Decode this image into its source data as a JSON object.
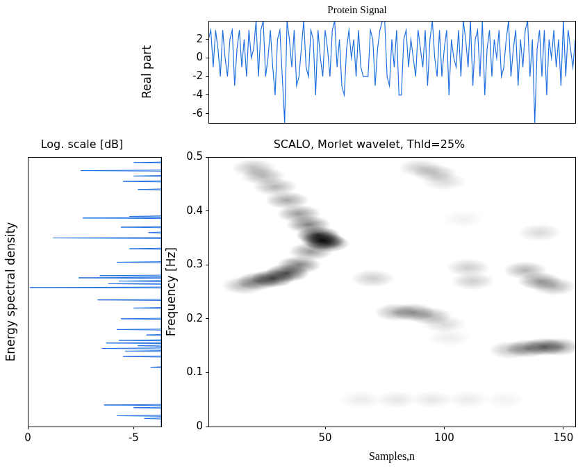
{
  "chart_data": [
    {
      "type": "line",
      "title": "Protein Signal",
      "ylabel": "Real part",
      "color": "#1f6fe0",
      "grid": false,
      "tick_labels": "y",
      "xlim": [
        1,
        155
      ],
      "ylim": [
        -7,
        4
      ],
      "yticks": [
        -6,
        -4,
        -2,
        0,
        2
      ],
      "x": [
        1,
        2,
        3,
        4,
        5,
        6,
        7,
        8,
        9,
        10,
        11,
        12,
        13,
        14,
        15,
        16,
        17,
        18,
        19,
        20,
        21,
        22,
        23,
        24,
        25,
        26,
        27,
        28,
        29,
        30,
        31,
        32,
        33,
        34,
        35,
        36,
        37,
        38,
        39,
        40,
        41,
        42,
        43,
        44,
        45,
        46,
        47,
        48,
        49,
        50,
        51,
        52,
        53,
        54,
        55,
        56,
        57,
        58,
        59,
        60,
        61,
        62,
        63,
        64,
        65,
        66,
        67,
        68,
        69,
        70,
        71,
        72,
        73,
        74,
        75,
        76,
        77,
        78,
        79,
        80,
        81,
        82,
        83,
        84,
        85,
        86,
        87,
        88,
        89,
        90,
        91,
        92,
        93,
        94,
        95,
        96,
        97,
        98,
        99,
        100,
        101,
        102,
        103,
        104,
        105,
        106,
        107,
        108,
        109,
        110,
        111,
        112,
        113,
        114,
        115,
        116,
        117,
        118,
        119,
        120,
        121,
        122,
        123,
        124,
        125,
        126,
        127,
        128,
        129,
        130,
        131,
        132,
        133,
        134,
        135,
        136,
        137,
        138,
        139,
        140,
        141,
        142,
        143,
        144,
        145,
        146,
        147,
        148,
        149,
        150,
        151,
        152,
        153,
        154,
        155
      ],
      "values": [
        2,
        3,
        -1,
        3,
        1,
        -2,
        3,
        0,
        -2,
        2,
        3,
        -3,
        1,
        3,
        -1,
        2,
        -2,
        3,
        0,
        1,
        4,
        -2,
        3,
        4,
        -2,
        0,
        3,
        -1,
        -4,
        2,
        3,
        -2,
        -7,
        4,
        2,
        -1,
        3,
        -3,
        -2,
        1,
        4,
        -1,
        -2,
        3,
        2,
        -4,
        3,
        0,
        -2,
        3,
        1,
        -2,
        3,
        4,
        -1,
        2,
        -3,
        -4,
        1,
        3,
        0,
        2,
        -2,
        3,
        -1,
        -2,
        -2,
        -2,
        3,
        2,
        -3,
        1,
        3,
        4,
        4,
        -2,
        -3,
        2,
        -1,
        3,
        -4,
        -4,
        2,
        3,
        -1,
        2,
        0,
        -2,
        3,
        1,
        -1,
        3,
        -3,
        2,
        4,
        0,
        -2,
        3,
        -2,
        1,
        3,
        -4,
        2,
        0,
        -1,
        3,
        -2,
        4,
        2,
        -1,
        4,
        -3,
        2,
        3,
        -2,
        4,
        -4,
        1,
        3,
        -2,
        2,
        0,
        3,
        -2,
        -1,
        2,
        4,
        -2,
        1,
        3,
        -3,
        2,
        -1,
        3,
        4,
        -2,
        2,
        -7,
        1,
        3,
        -2,
        3,
        -4,
        2,
        0,
        3,
        -1,
        2,
        -3,
        4,
        -2,
        3,
        1,
        -1,
        2
      ]
    },
    {
      "type": "line",
      "title": "Log. scale [dB]",
      "ylabel": "Energy spectral density",
      "color": "#1f6fe0",
      "grid": false,
      "tick_labels": "x",
      "xlim": [
        0,
        -6.3
      ],
      "xticks": [
        0,
        -5
      ],
      "ylim": [
        0,
        0.5
      ],
      "y": [
        0,
        0.014,
        0.015,
        0.016,
        0.019,
        0.02,
        0.021,
        0.034,
        0.035,
        0.036,
        0.039,
        0.04,
        0.041,
        0.109,
        0.11,
        0.111,
        0.129,
        0.13,
        0.131,
        0.139,
        0.14,
        0.141,
        0.144,
        0.145,
        0.146,
        0.149,
        0.15,
        0.151,
        0.154,
        0.155,
        0.156,
        0.159,
        0.16,
        0.161,
        0.169,
        0.17,
        0.171,
        0.179,
        0.18,
        0.181,
        0.199,
        0.2,
        0.201,
        0.219,
        0.22,
        0.221,
        0.234,
        0.235,
        0.236,
        0.257,
        0.258,
        0.259,
        0.264,
        0.265,
        0.266,
        0.269,
        0.27,
        0.271,
        0.275,
        0.276,
        0.277,
        0.279,
        0.28,
        0.281,
        0.304,
        0.305,
        0.306,
        0.329,
        0.33,
        0.331,
        0.349,
        0.35,
        0.351,
        0.359,
        0.36,
        0.361,
        0.369,
        0.37,
        0.371,
        0.386,
        0.387,
        0.388,
        0.389,
        0.39,
        0.391,
        0.439,
        0.44,
        0.441,
        0.454,
        0.455,
        0.456,
        0.464,
        0.465,
        0.466,
        0.474,
        0.475,
        0.476,
        0.489,
        0.49,
        0.491,
        0.5
      ],
      "x": [
        -6.3,
        -6.3,
        -5.5,
        -6.3,
        -6.3,
        -4.2,
        -6.3,
        -6.3,
        -5,
        -6.3,
        -6.3,
        -3.6,
        -6.3,
        -6.3,
        -5.8,
        -6.3,
        -6.3,
        -4.5,
        -6.3,
        -6.3,
        -4.6,
        -6.3,
        -6.3,
        -3.5,
        -6.3,
        -6.3,
        -5.2,
        -6.3,
        -6.3,
        -3.7,
        -6.3,
        -6.3,
        -4.3,
        -6.3,
        -6.3,
        -5.6,
        -6.3,
        -6.3,
        -4.2,
        -6.3,
        -6.3,
        -4.4,
        -6.3,
        -6.3,
        -5,
        -6.3,
        -6.3,
        -3.3,
        -6.3,
        -6.3,
        -0.1,
        -6.3,
        -6.3,
        -3.8,
        -6.3,
        -6.3,
        -4.3,
        -6.3,
        -6.3,
        -2.4,
        -6.3,
        -6.3,
        -3.4,
        -6.3,
        -6.3,
        -4.2,
        -6.3,
        -6.3,
        -4.8,
        -6.3,
        -6.3,
        -1.2,
        -6.3,
        -6.3,
        -5.7,
        -6.3,
        -6.3,
        -4.4,
        -6.3,
        -6.3,
        -2.6,
        -6.3,
        -6.3,
        -4.8,
        -6.3,
        -6.3,
        -5.2,
        -6.3,
        -6.3,
        -4.5,
        -6.3,
        -6.3,
        -5,
        -6.3,
        -6.3,
        -2.5,
        -6.3,
        -6.3,
        -5,
        -6.3,
        -6.3
      ]
    },
    {
      "type": "heatmap",
      "title": "SCALO, Morlet wavelet, Thld=25%",
      "xlabel": "Samples,n",
      "ylabel": "Frequency [Hz]",
      "color": "#000000",
      "grid": false,
      "xlim": [
        1,
        155
      ],
      "xticks": [
        50,
        100,
        150
      ],
      "ylim": [
        0,
        0.5
      ],
      "yticks": [
        0,
        0.1,
        0.2,
        0.3,
        0.4,
        0.5
      ],
      "cells": [
        {
          "x": 20,
          "y": 0.48,
          "value": 0.25
        },
        {
          "x": 24,
          "y": 0.465,
          "value": 0.3
        },
        {
          "x": 29,
          "y": 0.445,
          "value": 0.3
        },
        {
          "x": 34,
          "y": 0.42,
          "value": 0.35
        },
        {
          "x": 39,
          "y": 0.395,
          "value": 0.4
        },
        {
          "x": 43,
          "y": 0.375,
          "value": 0.5
        },
        {
          "x": 47,
          "y": 0.355,
          "value": 0.8
        },
        {
          "x": 49,
          "y": 0.345,
          "value": 0.9
        },
        {
          "x": 51,
          "y": 0.34,
          "value": 0.6
        },
        {
          "x": 44,
          "y": 0.325,
          "value": 0.4
        },
        {
          "x": 39,
          "y": 0.3,
          "value": 0.5
        },
        {
          "x": 34,
          "y": 0.285,
          "value": 0.7
        },
        {
          "x": 28,
          "y": 0.275,
          "value": 0.7
        },
        {
          "x": 22,
          "y": 0.27,
          "value": 0.5
        },
        {
          "x": 16,
          "y": 0.262,
          "value": 0.3
        },
        {
          "x": 90,
          "y": 0.48,
          "value": 0.2
        },
        {
          "x": 96,
          "y": 0.47,
          "value": 0.25
        },
        {
          "x": 100,
          "y": 0.455,
          "value": 0.15
        },
        {
          "x": 70,
          "y": 0.275,
          "value": 0.2
        },
        {
          "x": 80,
          "y": 0.212,
          "value": 0.3
        },
        {
          "x": 87,
          "y": 0.212,
          "value": 0.4
        },
        {
          "x": 94,
          "y": 0.205,
          "value": 0.3
        },
        {
          "x": 100,
          "y": 0.19,
          "value": 0.15
        },
        {
          "x": 110,
          "y": 0.295,
          "value": 0.2
        },
        {
          "x": 112,
          "y": 0.27,
          "value": 0.2
        },
        {
          "x": 108,
          "y": 0.385,
          "value": 0.06
        },
        {
          "x": 134,
          "y": 0.29,
          "value": 0.3
        },
        {
          "x": 140,
          "y": 0.27,
          "value": 0.4
        },
        {
          "x": 146,
          "y": 0.26,
          "value": 0.3
        },
        {
          "x": 140,
          "y": 0.36,
          "value": 0.15
        },
        {
          "x": 128,
          "y": 0.142,
          "value": 0.25
        },
        {
          "x": 135,
          "y": 0.145,
          "value": 0.45
        },
        {
          "x": 142,
          "y": 0.148,
          "value": 0.55
        },
        {
          "x": 148,
          "y": 0.148,
          "value": 0.4
        },
        {
          "x": 65,
          "y": 0.05,
          "value": 0.08
        },
        {
          "x": 80,
          "y": 0.05,
          "value": 0.1
        },
        {
          "x": 95,
          "y": 0.05,
          "value": 0.1
        },
        {
          "x": 110,
          "y": 0.05,
          "value": 0.08
        },
        {
          "x": 125,
          "y": 0.05,
          "value": 0.05
        },
        {
          "x": 102,
          "y": 0.165,
          "value": 0.08
        }
      ]
    }
  ]
}
